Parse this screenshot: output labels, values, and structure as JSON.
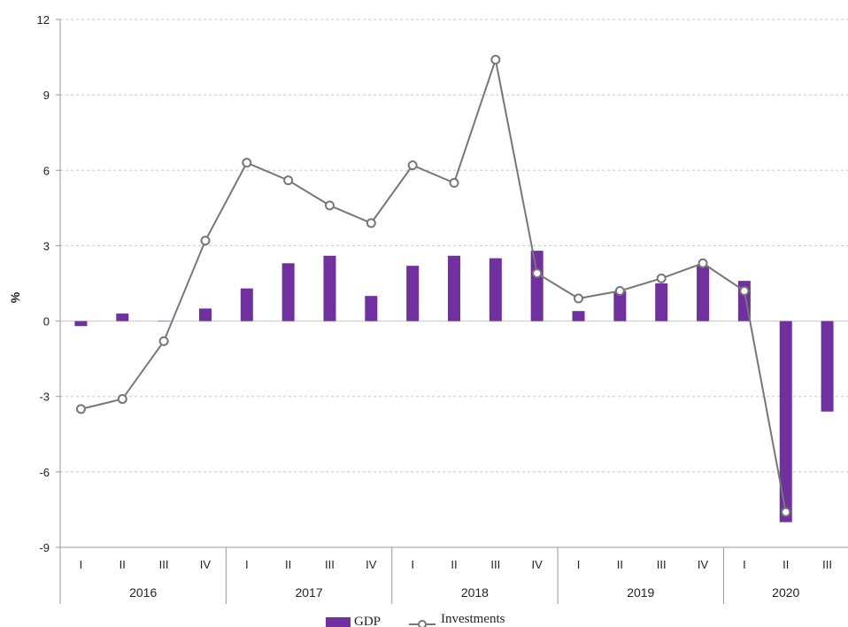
{
  "chart_data": {
    "type": "bar",
    "title": "",
    "ylabel": "%",
    "xlabel": "",
    "ylim": [
      -9,
      12
    ],
    "yticks": [
      12,
      9,
      6,
      3,
      0,
      -3,
      -6,
      -9
    ],
    "grid": true,
    "legend_position": "bottom",
    "categories": [
      "I",
      "II",
      "III",
      "IV",
      "I",
      "II",
      "III",
      "IV",
      "I",
      "II",
      "III",
      "IV",
      "I",
      "II",
      "III",
      "IV",
      "I",
      "II",
      "III"
    ],
    "years": [
      {
        "label": "2016",
        "quarters": 4
      },
      {
        "label": "2017",
        "quarters": 4
      },
      {
        "label": "2018",
        "quarters": 4
      },
      {
        "label": "2019",
        "quarters": 4
      },
      {
        "label": "2020",
        "quarters": 3
      }
    ],
    "series": [
      {
        "name": "GDP",
        "type": "bar",
        "color": "#7030a0",
        "values": [
          -0.2,
          0.3,
          0.0,
          0.5,
          1.3,
          2.3,
          2.6,
          1.0,
          2.2,
          2.6,
          2.5,
          2.8,
          0.4,
          1.2,
          1.5,
          2.2,
          1.6,
          -8.0,
          -3.6
        ]
      },
      {
        "name": "Investments",
        "type": "line",
        "color": "#777777",
        "values": [
          -3.5,
          -3.1,
          -0.8,
          3.2,
          6.3,
          5.6,
          4.6,
          3.9,
          6.2,
          5.5,
          10.4,
          1.9,
          0.9,
          1.2,
          1.7,
          2.3,
          1.2,
          -7.6,
          null
        ]
      }
    ]
  }
}
